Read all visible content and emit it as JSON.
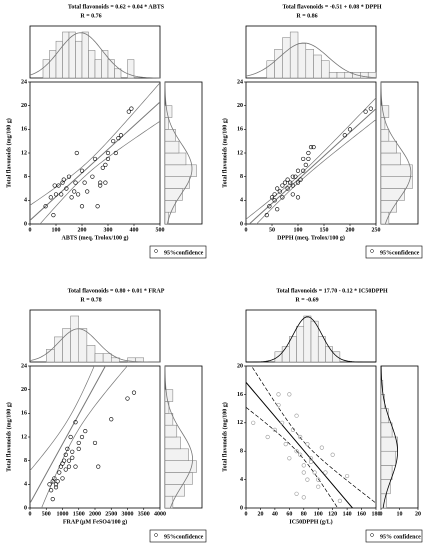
{
  "chart_data": [
    {
      "type": "scatter",
      "title": "Total flavonoids = 0.62 + 0.04 * ABTS",
      "subtitle": "R = 0.76",
      "x_label": "ABTS (meq. Trolox/100 g)",
      "y_label": "Total flavonoids (mg/100 g)",
      "legend_label": "95%confidence",
      "color": "#000000",
      "line_color": "#777777",
      "band_style": "solid",
      "x": [
        60,
        80,
        90,
        100,
        95,
        110,
        120,
        125,
        130,
        140,
        150,
        160,
        170,
        175,
        180,
        185,
        200,
        210,
        220,
        240,
        250,
        260,
        270,
        280,
        290,
        300,
        300,
        320,
        330,
        340,
        350,
        270,
        290,
        380,
        390,
        200
      ],
      "y": [
        3,
        4.5,
        1.5,
        5,
        6.5,
        6.5,
        5,
        7,
        7.5,
        6,
        8,
        4.5,
        5.5,
        7,
        12,
        5,
        9,
        7,
        5.5,
        8,
        11,
        3,
        7,
        9.5,
        10,
        11,
        12,
        14,
        12,
        14.5,
        15,
        6.5,
        7,
        19,
        19.5,
        3
      ],
      "xlim": [
        0,
        500
      ],
      "xticks": [
        0,
        100,
        200,
        300,
        400,
        500
      ],
      "ylim": [
        0,
        24
      ],
      "yticks": [
        0,
        4,
        8,
        12,
        16,
        20,
        24
      ],
      "fit": {
        "intercept": 0.62,
        "slope": 0.04
      },
      "x_hist": {
        "bins": [
          50,
          75,
          100,
          125,
          150,
          175,
          200,
          225,
          250,
          275,
          300,
          325,
          350,
          375,
          400
        ],
        "counts": [
          2,
          3,
          4,
          5,
          5,
          4,
          5,
          3,
          2,
          3,
          2,
          1,
          0,
          2
        ]
      },
      "y_hist": {
        "bins": [
          0,
          2,
          4,
          6,
          8,
          10,
          12,
          14,
          16,
          18,
          20
        ],
        "counts": [
          1,
          3,
          5,
          7,
          9,
          6,
          4,
          3,
          1,
          2
        ]
      }
    },
    {
      "type": "scatter",
      "title": "Total flavonoids = -0.51 + 0.08 * DPPH",
      "subtitle": "R = 0.86",
      "x_label": "DPPH (meq. Trolox/100 g)",
      "y_label": "Total flavonoids (mg/100 g)",
      "legend_label": "95%confidence",
      "color": "#000000",
      "line_color": "#777777",
      "band_style": "solid",
      "x": [
        40,
        45,
        50,
        55,
        55,
        60,
        60,
        65,
        70,
        70,
        75,
        80,
        80,
        85,
        90,
        90,
        95,
        100,
        100,
        105,
        110,
        110,
        115,
        120,
        120,
        125,
        130,
        100,
        90,
        190,
        200,
        230,
        240
      ],
      "y": [
        1.5,
        3,
        4.5,
        4,
        5,
        2.5,
        6,
        5.5,
        4.5,
        6.5,
        7,
        6,
        7.5,
        7,
        8,
        6.5,
        8,
        9,
        7,
        7.5,
        11,
        9,
        10,
        12,
        11,
        13,
        13,
        4.5,
        5,
        15,
        16,
        19,
        19.5
      ],
      "xlim": [
        0,
        250
      ],
      "xticks": [
        0,
        50,
        100,
        150,
        200,
        250
      ],
      "ylim": [
        0,
        24
      ],
      "yticks": [
        0,
        4,
        8,
        12,
        16,
        20,
        24
      ],
      "fit": {
        "intercept": -0.51,
        "slope": 0.08
      },
      "x_hist": {
        "bins": [
          40,
          55,
          70,
          85,
          100,
          115,
          130,
          145,
          160,
          175,
          190,
          205,
          220,
          235,
          250
        ],
        "counts": [
          3,
          5,
          7,
          8,
          6,
          5,
          4,
          3,
          1,
          1,
          1,
          1,
          1,
          1
        ]
      },
      "y_hist": {
        "bins": [
          0,
          2,
          4,
          6,
          8,
          10,
          12,
          14,
          16,
          18,
          20
        ],
        "counts": [
          2,
          4,
          6,
          8,
          8,
          5,
          4,
          2,
          1,
          2
        ]
      }
    },
    {
      "type": "scatter",
      "title": "Total flavonoids = 0.80 + 0.01 * FRAP",
      "subtitle": "R = 0.78",
      "x_label": "FRAP (µM FeSO4/100 g)",
      "y_label": "Total flavonoids (mg/100 g)",
      "legend_label": "95%confidence",
      "color": "#000000",
      "line_color": "#777777",
      "band_style": "solid",
      "x": [
        600,
        650,
        700,
        700,
        750,
        800,
        800,
        850,
        900,
        950,
        1000,
        1000,
        1050,
        1100,
        1100,
        1150,
        1200,
        1200,
        1250,
        1300,
        1300,
        1400,
        1400,
        1500,
        1500,
        1600,
        1700,
        2000,
        2100,
        2500,
        3000,
        3200
      ],
      "y": [
        4,
        3,
        4.5,
        1.5,
        5,
        3.5,
        4,
        4.5,
        6,
        7,
        5,
        7.5,
        8,
        6.5,
        9,
        10,
        8,
        7,
        12,
        9.5,
        8.5,
        14.5,
        7,
        11,
        10,
        12,
        13,
        11,
        7,
        15,
        18.5,
        19.5
      ],
      "xlim": [
        0,
        4000
      ],
      "xticks": [
        0,
        500,
        1000,
        1500,
        2000,
        2500,
        3000,
        3500,
        4000
      ],
      "ylim": [
        0,
        24
      ],
      "yticks": [
        0,
        4,
        8,
        12,
        16,
        20,
        24
      ],
      "fit": {
        "intercept": 0.8,
        "slope": 0.01
      },
      "x_hist": {
        "bins": [
          500,
          750,
          1000,
          1250,
          1500,
          1750,
          2000,
          2250,
          2500,
          2750,
          3000,
          3250,
          3500
        ],
        "counts": [
          3,
          6,
          8,
          11,
          8,
          4,
          2,
          2,
          1,
          0,
          1,
          1
        ]
      },
      "y_hist": {
        "bins": [
          0,
          2,
          4,
          6,
          8,
          10,
          12,
          14,
          16,
          18,
          20
        ],
        "counts": [
          2,
          5,
          7,
          8,
          6,
          4,
          3,
          2,
          1,
          2
        ]
      }
    },
    {
      "type": "scatter",
      "title": "Total flavonoids = 17.70 - 0.12 * IC50DPPH",
      "subtitle": "R = -0.69",
      "x_label": "IC50DPPH (g/L)",
      "y_label": "Total flavonoids (mg/100 g)",
      "legend_label": "95% confidence",
      "color": "#999999",
      "line_color": "#000000",
      "band_style": "dashed",
      "x": [
        10,
        30,
        40,
        45,
        45,
        50,
        55,
        60,
        60,
        65,
        70,
        70,
        75,
        75,
        80,
        80,
        85,
        85,
        90,
        90,
        95,
        100,
        100,
        105,
        110,
        120,
        70,
        140,
        130,
        80
      ],
      "y": [
        12,
        10,
        11,
        16,
        14.5,
        12,
        9,
        16,
        7,
        11,
        13,
        8,
        7.5,
        10,
        6,
        5,
        9,
        4,
        7,
        6.5,
        5,
        4,
        3,
        8.5,
        5,
        7.5,
        2,
        4.5,
        1,
        1.5
      ],
      "xlim": [
        0,
        180
      ],
      "xticks": [
        0,
        20,
        40,
        60,
        80,
        100,
        120,
        140,
        160,
        180
      ],
      "ylim": [
        0,
        20
      ],
      "yticks": [
        0,
        4,
        8,
        12,
        16,
        20
      ],
      "fit": {
        "intercept": 17.7,
        "slope": -0.12
      },
      "x_hist": {
        "bins": [
          40,
          50,
          60,
          70,
          80,
          90,
          100,
          110,
          120,
          130
        ],
        "counts": [
          2,
          3,
          5,
          7,
          9,
          8,
          5,
          3,
          2
        ]
      },
      "y_hist": {
        "bins": [
          0,
          2,
          4,
          6,
          8,
          10,
          12,
          14,
          16,
          18
        ],
        "counts": [
          3,
          5,
          6,
          8,
          9,
          6,
          4,
          2,
          1
        ],
        "xlim": [
          0,
          20
        ],
        "xticks": [
          0,
          10,
          20
        ]
      }
    }
  ]
}
